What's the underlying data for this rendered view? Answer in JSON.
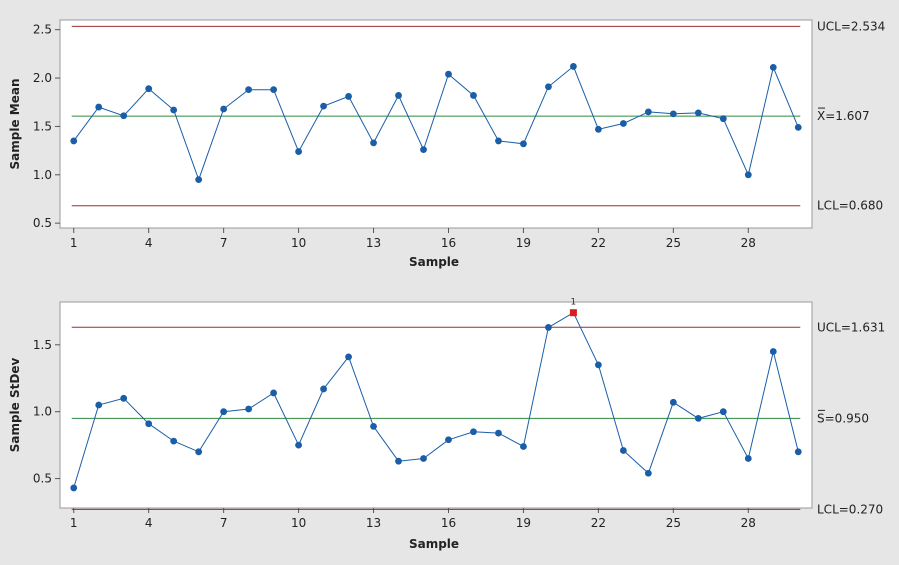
{
  "chart_data": [
    {
      "type": "line",
      "ylabel": "Sample Mean",
      "xlabel": "Sample",
      "x": [
        1,
        2,
        3,
        4,
        5,
        6,
        7,
        8,
        9,
        10,
        11,
        12,
        13,
        14,
        15,
        16,
        17,
        18,
        19,
        20,
        21,
        22,
        23,
        24,
        25,
        26,
        27,
        28,
        29,
        30
      ],
      "values": [
        1.35,
        1.7,
        1.61,
        1.89,
        1.67,
        0.95,
        1.68,
        1.88,
        1.88,
        1.24,
        1.71,
        1.81,
        1.33,
        1.82,
        1.26,
        2.04,
        1.82,
        1.35,
        1.32,
        1.91,
        2.12,
        1.47,
        1.53,
        1.65,
        1.63,
        1.64,
        1.58,
        1.0,
        2.11,
        1.49
      ],
      "xticks": [
        "1",
        "4",
        "7",
        "10",
        "13",
        "16",
        "19",
        "22",
        "25",
        "28"
      ],
      "yticks": [
        "0.5",
        "1.0",
        "1.5",
        "2.0",
        "2.5"
      ],
      "ylim": [
        0.45,
        2.6
      ],
      "limits": {
        "ucl": {
          "value": 2.534,
          "label": "UCL=2.534"
        },
        "center": {
          "value": 1.607,
          "label_symbol": "X",
          "label_value": "=1.607"
        },
        "lcl": {
          "value": 0.68,
          "label": "LCL=0.680"
        }
      },
      "flagged": [],
      "colors": {
        "series": "#1a5ea8",
        "center": "#2e8b3e",
        "limit": "#9b2f2f",
        "flag": "#d42020"
      }
    },
    {
      "type": "line",
      "ylabel": "Sample StDev",
      "xlabel": "Sample",
      "x": [
        1,
        2,
        3,
        4,
        5,
        6,
        7,
        8,
        9,
        10,
        11,
        12,
        13,
        14,
        15,
        16,
        17,
        18,
        19,
        20,
        21,
        22,
        23,
        24,
        25,
        26,
        27,
        28,
        29,
        30
      ],
      "values": [
        0.43,
        1.05,
        1.1,
        0.91,
        0.78,
        0.7,
        1.0,
        1.02,
        1.14,
        0.75,
        1.17,
        1.41,
        0.89,
        0.63,
        0.65,
        0.79,
        0.85,
        0.84,
        0.74,
        1.63,
        1.74,
        1.35,
        0.71,
        0.54,
        1.07,
        0.95,
        1.0,
        0.65,
        1.45,
        0.7
      ],
      "xticks": [
        "1",
        "4",
        "7",
        "10",
        "13",
        "16",
        "19",
        "22",
        "25",
        "28"
      ],
      "yticks": [
        "0.5",
        "1.0",
        "1.5"
      ],
      "ylim": [
        0.28,
        1.82
      ],
      "limits": {
        "ucl": {
          "value": 1.631,
          "label": "UCL=1.631"
        },
        "center": {
          "value": 0.95,
          "label_symbol": "S",
          "label_value": "=0.950"
        },
        "lcl": {
          "value": 0.27,
          "label": "LCL=0.270"
        }
      },
      "flagged": [
        {
          "x": 21,
          "label": "1"
        }
      ],
      "colors": {
        "series": "#1a5ea8",
        "center": "#2e8b3e",
        "limit": "#9b2f2f",
        "flag": "#d42020"
      }
    }
  ]
}
